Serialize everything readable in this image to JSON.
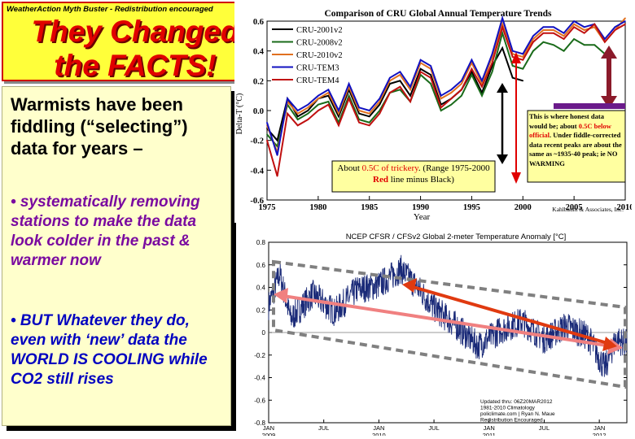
{
  "banner": {
    "tagline": "WeatherAction Myth Buster - Redistribution encouraged",
    "headline_line1": "They Changed",
    "headline_line2": "the FACTS!"
  },
  "panel": {
    "intro": "Warmists have been fiddling (“selecting”) data for years –",
    "bullet1": "• systematically removing stations to make the data look colder in the past & warmer now",
    "bullet2": "• BUT Whatever they do, even with ‘new’ data the WORLD IS COOLING while CO2 still rises"
  },
  "colors": {
    "banner_bg": "#ffff3a",
    "headline": "#e00000",
    "bullet1": "#7a0aa0",
    "bullet2": "#0000c0",
    "panel_bg": "#ffffcc"
  },
  "chart_data": [
    {
      "type": "line",
      "title": "Comparison of CRU Global Annual Temperature Trends",
      "xlabel": "Year",
      "ylabel": "Delta-T (°C)",
      "xlim": [
        1975,
        2010
      ],
      "ylim": [
        -0.6,
        0.6
      ],
      "xticks": [
        1975,
        1980,
        1985,
        1990,
        1995,
        2000,
        2005,
        2010
      ],
      "yticks": [
        -0.6,
        -0.4,
        -0.2,
        0.0,
        0.2,
        0.4,
        0.6
      ],
      "credit": "Kahlbaum & Associates, Inc.",
      "legend": [
        "CRU-2001v2",
        "CRU-2008v2",
        "CRU-2010v2",
        "CRU-TEM3",
        "CRU-TEM4"
      ],
      "series": [
        {
          "name": "CRU-2001v2",
          "color": "#000000",
          "x": [
            1975,
            1976,
            1977,
            1978,
            1979,
            1980,
            1981,
            1982,
            1983,
            1984,
            1985,
            1986,
            1987,
            1988,
            1989,
            1990,
            1991,
            1992,
            1993,
            1994,
            1995,
            1996,
            1997,
            1998,
            1999,
            2000
          ],
          "values": [
            -0.12,
            -0.2,
            0.08,
            -0.04,
            0.0,
            0.08,
            0.1,
            -0.04,
            0.14,
            -0.02,
            -0.04,
            0.04,
            0.18,
            0.2,
            0.1,
            0.28,
            0.24,
            0.04,
            0.08,
            0.14,
            0.26,
            0.12,
            0.3,
            0.42,
            0.22,
            0.2
          ]
        },
        {
          "name": "CRU-2008v2",
          "color": "#1a6b1a",
          "x": [
            1975,
            1976,
            1977,
            1978,
            1979,
            1980,
            1981,
            1982,
            1983,
            1984,
            1985,
            1986,
            1987,
            1988,
            1989,
            1990,
            1991,
            1992,
            1993,
            1994,
            1995,
            1996,
            1997,
            1998,
            1999,
            2000,
            2001,
            2002,
            2003,
            2004,
            2005,
            2006,
            2007,
            2008
          ],
          "values": [
            -0.16,
            -0.24,
            0.04,
            -0.06,
            -0.02,
            0.04,
            0.06,
            -0.08,
            0.1,
            -0.06,
            -0.08,
            0.0,
            0.12,
            0.14,
            0.06,
            0.24,
            0.18,
            0.0,
            0.04,
            0.1,
            0.24,
            0.1,
            0.26,
            0.52,
            0.3,
            0.28,
            0.4,
            0.46,
            0.44,
            0.4,
            0.48,
            0.44,
            0.44,
            0.38
          ]
        },
        {
          "name": "CRU-2010v2",
          "color": "#e07020",
          "x": [
            1975,
            1976,
            1977,
            1978,
            1979,
            1980,
            1981,
            1982,
            1983,
            1984,
            1985,
            1986,
            1987,
            1988,
            1989,
            1990,
            1991,
            1992,
            1993,
            1994,
            1995,
            1996,
            1997,
            1998,
            1999,
            2000,
            2001,
            2002,
            2003,
            2004,
            2005,
            2006,
            2007,
            2008,
            2009,
            2010
          ],
          "values": [
            -0.1,
            -0.28,
            0.06,
            -0.02,
            0.02,
            0.08,
            0.12,
            -0.02,
            0.16,
            0.0,
            -0.02,
            0.06,
            0.2,
            0.24,
            0.14,
            0.32,
            0.28,
            0.08,
            0.12,
            0.18,
            0.32,
            0.18,
            0.36,
            0.58,
            0.38,
            0.36,
            0.48,
            0.54,
            0.54,
            0.5,
            0.58,
            0.54,
            0.56,
            0.46,
            0.54,
            0.62
          ]
        },
        {
          "name": "CRU-TEM3",
          "color": "#1010c0",
          "x": [
            1975,
            1976,
            1977,
            1978,
            1979,
            1980,
            1981,
            1982,
            1983,
            1984,
            1985,
            1986,
            1987,
            1988,
            1989,
            1990,
            1991,
            1992,
            1993,
            1994,
            1995,
            1996,
            1997,
            1998,
            1999,
            2000,
            2001,
            2002,
            2003,
            2004,
            2005,
            2006,
            2007,
            2008,
            2009,
            2010
          ],
          "values": [
            -0.08,
            -0.3,
            0.08,
            0.0,
            0.04,
            0.1,
            0.14,
            0.0,
            0.18,
            0.02,
            0.0,
            0.08,
            0.22,
            0.26,
            0.16,
            0.34,
            0.3,
            0.1,
            0.14,
            0.2,
            0.34,
            0.2,
            0.38,
            0.62,
            0.4,
            0.38,
            0.5,
            0.56,
            0.56,
            0.52,
            0.6,
            0.56,
            0.58,
            0.48,
            0.56,
            0.6
          ]
        },
        {
          "name": "CRU-TEM4",
          "color": "#c01010",
          "x": [
            1975,
            1976,
            1977,
            1978,
            1979,
            1980,
            1981,
            1982,
            1983,
            1984,
            1985,
            1986,
            1987,
            1988,
            1989,
            1990,
            1991,
            1992,
            1993,
            1994,
            1995,
            1996,
            1997,
            1998,
            1999,
            2000,
            2001,
            2002,
            2003,
            2004,
            2005,
            2006,
            2007,
            2008,
            2009,
            2010
          ],
          "values": [
            -0.2,
            -0.44,
            -0.02,
            -0.1,
            -0.06,
            0.0,
            0.04,
            -0.1,
            0.08,
            -0.08,
            -0.1,
            -0.02,
            0.12,
            0.16,
            0.06,
            0.26,
            0.22,
            0.02,
            0.08,
            0.14,
            0.28,
            0.16,
            0.32,
            0.56,
            0.36,
            0.34,
            0.46,
            0.52,
            0.52,
            0.48,
            0.56,
            0.52,
            0.58,
            0.46,
            0.54,
            0.58
          ]
        }
      ],
      "annotation_box1": {
        "part1": "About ",
        "highlight1": "0.5C of trickery",
        "part2": ". (Range 1975-2000 ",
        "highlight2": "Red",
        "part3": " line minus Black)"
      },
      "annotation_box2": {
        "part1": "This is where honest data would be; about ",
        "highlight1": "0.5C below official",
        "part2": ". Under fiddle-corrected data recent peaks are about the same as ~1935-40 peak; ie NO WARMING"
      }
    },
    {
      "type": "line",
      "title": "NCEP CFSR / CFSv2 Global 2-meter Temperature Anomaly [°C]",
      "ylim": [
        -0.8,
        0.8
      ],
      "yticks": [
        -0.8,
        -0.6,
        -0.4,
        -0.2,
        0,
        0.2,
        0.4,
        0.6,
        0.8
      ],
      "xlim": [
        2009.0,
        2012.25
      ],
      "xticks": [
        {
          "label": "JAN 2009",
          "x": 2009.0
        },
        {
          "label": "JUL",
          "x": 2009.5
        },
        {
          "label": "JAN 2010",
          "x": 2010.0
        },
        {
          "label": "JUL",
          "x": 2010.5
        },
        {
          "label": "JAN 2011",
          "x": 2011.0
        },
        {
          "label": "JUL",
          "x": 2011.5
        },
        {
          "label": "JAN 2012",
          "x": 2012.0
        }
      ],
      "trend_anchor_points": [
        {
          "x": 2009.0,
          "y": 0.24
        },
        {
          "x": 2009.1,
          "y": 0.52
        },
        {
          "x": 2009.2,
          "y": 0.12
        },
        {
          "x": 2009.4,
          "y": 0.34
        },
        {
          "x": 2009.6,
          "y": 0.18
        },
        {
          "x": 2009.8,
          "y": 0.38
        },
        {
          "x": 2010.0,
          "y": 0.42
        },
        {
          "x": 2010.2,
          "y": 0.56
        },
        {
          "x": 2010.35,
          "y": 0.4
        },
        {
          "x": 2010.5,
          "y": 0.22
        },
        {
          "x": 2010.7,
          "y": 0.06
        },
        {
          "x": 2010.9,
          "y": -0.12
        },
        {
          "x": 2011.1,
          "y": 0.02
        },
        {
          "x": 2011.3,
          "y": 0.1
        },
        {
          "x": 2011.5,
          "y": -0.06
        },
        {
          "x": 2011.7,
          "y": 0.06
        },
        {
          "x": 2011.9,
          "y": -0.04
        },
        {
          "x": 2012.05,
          "y": -0.32
        },
        {
          "x": 2012.15,
          "y": -0.06
        },
        {
          "x": 2012.25,
          "y": -0.1
        }
      ],
      "footer": [
        "Updated thru: 06Z20MAR2012",
        "1981-2010 Climatology",
        "policlimate.com | Ryan N. Maue",
        "Redistribution Encouraged"
      ]
    }
  ]
}
